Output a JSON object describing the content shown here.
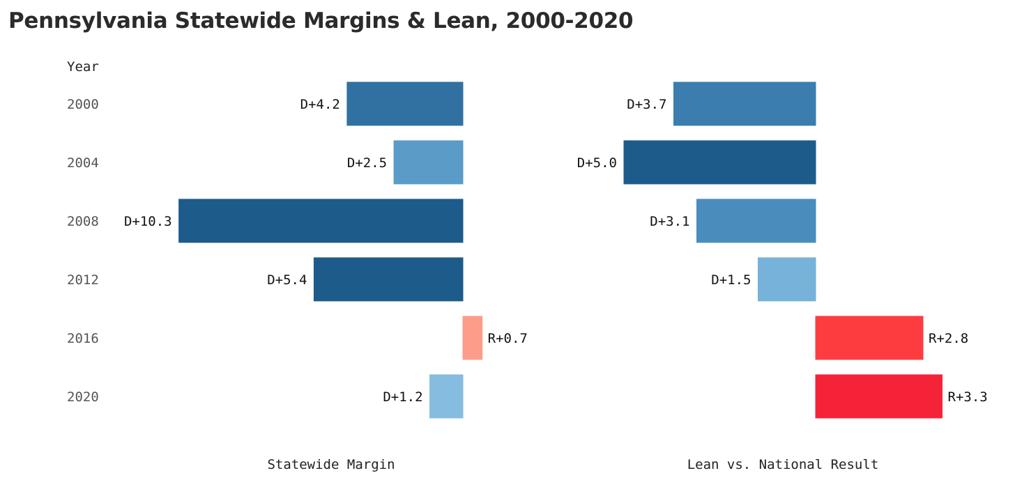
{
  "title": "Pennsylvania Statewide Margins & Lean, 2000-2020",
  "chart_data": {
    "type": "bar",
    "orientation": "horizontal",
    "category_label": "Year",
    "categories": [
      "2000",
      "2004",
      "2008",
      "2012",
      "2016",
      "2020"
    ],
    "panels": [
      {
        "xlabel": "Statewide Margin",
        "values": [
          -4.2,
          -2.5,
          -10.3,
          -5.4,
          0.7,
          -1.2
        ],
        "labels": [
          "D+4.2",
          "D+2.5",
          "D+10.3",
          "D+5.4",
          "R+0.7",
          "D+1.2"
        ],
        "colors": [
          "#3171a1",
          "#5a9bc7",
          "#1d5b8a",
          "#1d5b8a",
          "#fc9d8a",
          "#85bce0"
        ]
      },
      {
        "xlabel": "Lean vs. National Result",
        "values": [
          -3.7,
          -5.0,
          -3.1,
          -1.5,
          2.8,
          3.3
        ],
        "labels": [
          "D+3.7",
          "D+5.0",
          "D+3.1",
          "D+1.5",
          "R+2.8",
          "R+3.3"
        ],
        "colors": [
          "#3b7dae",
          "#1d5b8a",
          "#4a8cbc",
          "#76b2d9",
          "#fd3c40",
          "#f42337"
        ]
      }
    ],
    "grid": false,
    "legend": "none"
  }
}
